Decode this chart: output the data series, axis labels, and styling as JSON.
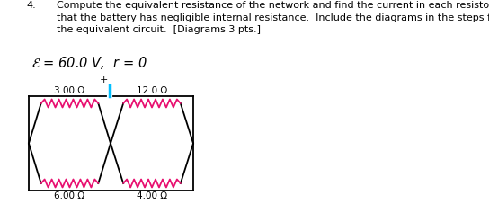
{
  "title_number": "4.",
  "title_text": "Compute the equivalent resistance of the network and find the current in each resistor.  Given\nthat the battery has negligible internal resistance.  Include the diagrams in the steps for finding\nthe equivalent circuit.  [Diagrams 3 pts.]",
  "equation": "\\mathcal{E} = 60.0 V,  r = 0",
  "resistor_color": "#E81070",
  "wire_color": "#000000",
  "battery_color": "#00BFFF",
  "background_color": "#ffffff",
  "text_color": "#000000",
  "fontsize_body": 8.0,
  "fontsize_eq": 10.5,
  "labels": [
    "3.00 Ω",
    "12.0 Ω",
    "6.00 Ω",
    "4.00 Ω"
  ]
}
